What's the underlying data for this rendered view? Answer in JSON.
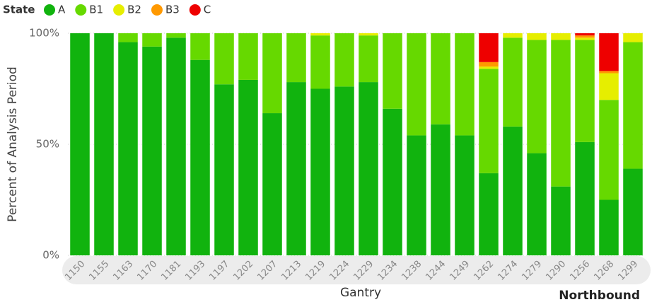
{
  "chart_data": {
    "type": "stacked-bar",
    "legend_title": "State",
    "y_label": "Percent of Analysis Period",
    "x_label": "Gantry",
    "annotation": "Northbound",
    "categories": [
      "1150",
      "1155",
      "1163",
      "1170",
      "1181",
      "1193",
      "1197",
      "1202",
      "1207",
      "1213",
      "1219",
      "1224",
      "1229",
      "1234",
      "1238",
      "1244",
      "1249",
      "1262",
      "1274",
      "1279",
      "1290",
      "1256",
      "1268",
      "1299"
    ],
    "series": [
      {
        "name": "A",
        "color": "#11b30e",
        "values": [
          100,
          100,
          96,
          94,
          98,
          88,
          77,
          79,
          64,
          78,
          75,
          76,
          78,
          66,
          54,
          59,
          54,
          37,
          58,
          46,
          31,
          51,
          25,
          39
        ]
      },
      {
        "name": "B1",
        "color": "#66d900",
        "values": [
          0,
          0,
          4,
          6,
          2,
          12,
          23,
          21,
          36,
          22,
          24,
          24,
          21,
          34,
          46,
          41,
          46,
          47,
          40,
          51,
          66,
          46,
          45,
          57
        ]
      },
      {
        "name": "B2",
        "color": "#e6ee00",
        "values": [
          0,
          0,
          0,
          0,
          0,
          0,
          0,
          0,
          0,
          0,
          1,
          0,
          1,
          0,
          0,
          0,
          0,
          1,
          2,
          3,
          3,
          1,
          12,
          4
        ]
      },
      {
        "name": "B3",
        "color": "#ff9900",
        "values": [
          0,
          0,
          0,
          0,
          0,
          0,
          0,
          0,
          0,
          0,
          0,
          0,
          0,
          0,
          0,
          0,
          0,
          2,
          0,
          0,
          0,
          1,
          1,
          0
        ]
      },
      {
        "name": "C",
        "color": "#ee0000",
        "values": [
          0,
          0,
          0,
          0,
          0,
          0,
          0,
          0,
          0,
          0,
          0,
          0,
          0,
          0,
          0,
          0,
          0,
          13,
          0,
          0,
          0,
          1,
          17,
          0
        ]
      }
    ],
    "ylim": [
      0,
      100
    ],
    "yticks": [
      {
        "value": 0,
        "label": "0%"
      },
      {
        "value": 50,
        "label": "50%"
      },
      {
        "value": 100,
        "label": "100%"
      }
    ],
    "grid": true,
    "legend": "top-left"
  }
}
